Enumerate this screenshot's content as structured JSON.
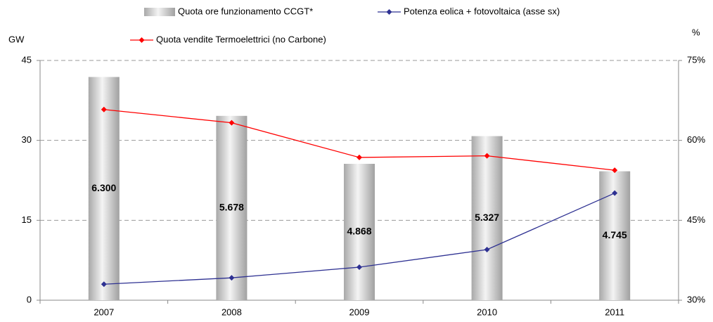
{
  "chart_data": {
    "type": "combo",
    "categories": [
      "2007",
      "2008",
      "2009",
      "2010",
      "2011"
    ],
    "y_label": "GW",
    "y2_label": "%",
    "ylim": [
      0,
      45
    ],
    "yticks": [
      0,
      15,
      30,
      45
    ],
    "y2lim": [
      30,
      75
    ],
    "y2ticks": [
      {
        "value": 30,
        "label": "30%"
      },
      {
        "value": 45,
        "label": "45%"
      },
      {
        "value": 60,
        "label": "60%"
      },
      {
        "value": 75,
        "label": "75%"
      }
    ],
    "grid": true,
    "series": [
      {
        "name": "Quota ore funzionamento CCGT*",
        "type": "bar",
        "axis": "y2",
        "color": "#b0b0b0",
        "values": [
          71.9,
          64.6,
          55.6,
          60.8,
          54.2
        ],
        "value_labels": [
          "6.300",
          "5.678",
          "4.868",
          "5.327",
          "4.745"
        ]
      },
      {
        "name": "Potenza eolica + fotovoltaica (asse sx)",
        "type": "line",
        "color": "#2e3192",
        "values": [
          3.0,
          4.2,
          6.2,
          9.5,
          20.1
        ]
      },
      {
        "name": "Quota vendite Termoelettrici (no Carbone)",
        "type": "line",
        "axis": "y2",
        "color": "#ff0000",
        "values": [
          65.8,
          63.3,
          56.8,
          57.1,
          54.4
        ]
      }
    ]
  }
}
